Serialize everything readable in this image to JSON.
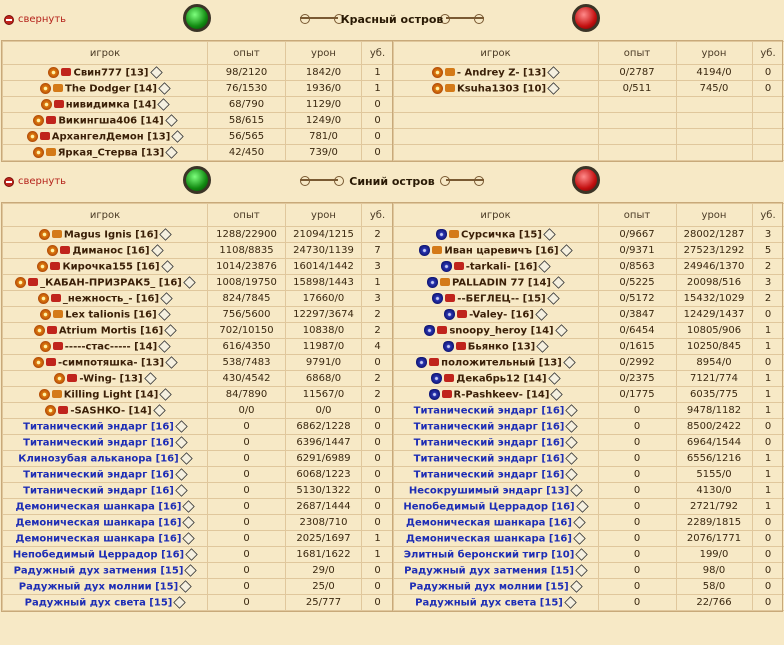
{
  "collapse_label": "свернуть",
  "headers": {
    "player": "игрок",
    "exp": "опыт",
    "dmg": "урон",
    "kills": "уб."
  },
  "sections": [
    {
      "title": "Красный остров",
      "left": [
        {
          "name": "Свин777",
          "level": "[13]",
          "exp": "98/2120",
          "dmg": "1842/0",
          "kills": "1",
          "rank": "#c0241c",
          "type": "player"
        },
        {
          "name": "The Dodger",
          "level": "[14]",
          "exp": "76/1530",
          "dmg": "1936/0",
          "kills": "1",
          "rank": "#d47a18",
          "type": "player"
        },
        {
          "name": "нивидимка",
          "level": "[14]",
          "exp": "68/790",
          "dmg": "1129/0",
          "kills": "0",
          "rank": "#c0241c",
          "type": "player"
        },
        {
          "name": "Викингша406",
          "level": "[14]",
          "exp": "58/615",
          "dmg": "1249/0",
          "kills": "0",
          "rank": "#c0241c",
          "type": "player"
        },
        {
          "name": "АрхангелДемон",
          "level": "[13]",
          "exp": "56/565",
          "dmg": "781/0",
          "kills": "0",
          "rank": "#c0241c",
          "type": "player"
        },
        {
          "name": "Яркая_Стерва",
          "level": "[13]",
          "exp": "42/450",
          "dmg": "739/0",
          "kills": "0",
          "rank": "#d47a18",
          "type": "player"
        }
      ],
      "right": [
        {
          "name": "- Andrey Z-",
          "level": "[13]",
          "exp": "0/2787",
          "dmg": "4194/0",
          "kills": "0",
          "rank": "#d47a18",
          "type": "player"
        },
        {
          "name": "Ksuha1303",
          "level": "[10]",
          "exp": "0/511",
          "dmg": "745/0",
          "kills": "0",
          "rank": "#d47a18",
          "type": "player"
        }
      ]
    },
    {
      "title": "Синий остров",
      "left": [
        {
          "name": "Magus Ignis",
          "level": "[16]",
          "exp": "1288/22900",
          "dmg": "21094/1215",
          "kills": "2",
          "rank": "#d47a18",
          "type": "player"
        },
        {
          "name": "Диманос",
          "level": "[16]",
          "exp": "1108/8835",
          "dmg": "24730/1139",
          "kills": "7",
          "rank": "#c0241c",
          "type": "player"
        },
        {
          "name": "Кирочка155",
          "level": "[16]",
          "exp": "1014/23876",
          "dmg": "16014/1442",
          "kills": "3",
          "rank": "#c0241c",
          "type": "player"
        },
        {
          "name": "_КАБАН-ПРИЗРАК5_",
          "level": "[16]",
          "exp": "1008/19750",
          "dmg": "15898/1443",
          "kills": "1",
          "rank": "#c0241c",
          "type": "player"
        },
        {
          "name": "_нежность_-",
          "level": "[16]",
          "exp": "824/7845",
          "dmg": "17660/0",
          "kills": "3",
          "rank": "#c0241c",
          "type": "player"
        },
        {
          "name": "Lex talionis",
          "level": "[16]",
          "exp": "756/5600",
          "dmg": "12297/3674",
          "kills": "2",
          "rank": "#d47a18",
          "type": "player"
        },
        {
          "name": "Atrium Mortis",
          "level": "[16]",
          "exp": "702/10150",
          "dmg": "10838/0",
          "kills": "2",
          "rank": "#c0241c",
          "type": "player"
        },
        {
          "name": "-----стас-----",
          "level": "[14]",
          "exp": "616/4350",
          "dmg": "11987/0",
          "kills": "4",
          "rank": "#c0241c",
          "type": "player"
        },
        {
          "name": "-симпотяшка-",
          "level": "[13]",
          "exp": "538/7483",
          "dmg": "9791/0",
          "kills": "0",
          "rank": "#c0241c",
          "type": "player"
        },
        {
          "name": "-Wing-",
          "level": "[13]",
          "exp": "430/4542",
          "dmg": "6868/0",
          "kills": "2",
          "rank": "#c0241c",
          "type": "player"
        },
        {
          "name": "Killing Light",
          "level": "[14]",
          "exp": "84/7890",
          "dmg": "11567/0",
          "kills": "2",
          "rank": "#d47a18",
          "type": "player"
        },
        {
          "name": "-SASHKO-",
          "level": "[14]",
          "exp": "0/0",
          "dmg": "0/0",
          "kills": "0",
          "rank": "#c0241c",
          "type": "player"
        },
        {
          "name": "Титанический эндарг",
          "level": "[16]",
          "exp": "0",
          "dmg": "6862/1228",
          "kills": "0",
          "type": "monster"
        },
        {
          "name": "Титанический эндарг",
          "level": "[16]",
          "exp": "0",
          "dmg": "6396/1447",
          "kills": "0",
          "type": "monster"
        },
        {
          "name": "Клинозубая альканора",
          "level": "[16]",
          "exp": "0",
          "dmg": "6291/6989",
          "kills": "0",
          "type": "monster"
        },
        {
          "name": "Титанический эндарг",
          "level": "[16]",
          "exp": "0",
          "dmg": "6068/1223",
          "kills": "0",
          "type": "monster"
        },
        {
          "name": "Титанический эндарг",
          "level": "[16]",
          "exp": "0",
          "dmg": "5130/1322",
          "kills": "0",
          "type": "monster"
        },
        {
          "name": "Демоническая шанкара",
          "level": "[16]",
          "exp": "0",
          "dmg": "2687/1444",
          "kills": "0",
          "type": "monster"
        },
        {
          "name": "Демоническая шанкара",
          "level": "[16]",
          "exp": "0",
          "dmg": "2308/710",
          "kills": "0",
          "type": "monster"
        },
        {
          "name": "Демоническая шанкара",
          "level": "[16]",
          "exp": "0",
          "dmg": "2025/1697",
          "kills": "1",
          "type": "monster"
        },
        {
          "name": "Непобедимый Церрадор",
          "level": "[16]",
          "exp": "0",
          "dmg": "1681/1622",
          "kills": "1",
          "type": "monster"
        },
        {
          "name": "Радужный дух затмения",
          "level": "[15]",
          "exp": "0",
          "dmg": "29/0",
          "kills": "0",
          "type": "monster"
        },
        {
          "name": "Радужный дух молнии",
          "level": "[15]",
          "exp": "0",
          "dmg": "25/0",
          "kills": "0",
          "type": "monster"
        },
        {
          "name": "Радужный дух света",
          "level": "[15]",
          "exp": "0",
          "dmg": "25/777",
          "kills": "0",
          "type": "monster"
        }
      ],
      "right": [
        {
          "name": "Сурсичка",
          "level": "[15]",
          "exp": "0/9667",
          "dmg": "28002/1287",
          "kills": "3",
          "rank": "#d47a18",
          "type": "enemy"
        },
        {
          "name": "Иван царевичъ",
          "level": "[16]",
          "exp": "0/9371",
          "dmg": "27523/1292",
          "kills": "5",
          "rank": "#d47a18",
          "type": "enemy"
        },
        {
          "name": "-tarkali-",
          "level": "[16]",
          "exp": "0/8563",
          "dmg": "24946/1370",
          "kills": "2",
          "rank": "#c0241c",
          "type": "enemy"
        },
        {
          "name": "PALLADIN 77",
          "level": "[14]",
          "exp": "0/5225",
          "dmg": "20098/516",
          "kills": "3",
          "rank": "#d47a18",
          "type": "enemy"
        },
        {
          "name": "--БЕГЛЕЦ--",
          "level": "[15]",
          "exp": "0/5172",
          "dmg": "15432/1029",
          "kills": "2",
          "rank": "#c0241c",
          "type": "enemy"
        },
        {
          "name": "-Valey-",
          "level": "[16]",
          "exp": "0/3847",
          "dmg": "12429/1437",
          "kills": "0",
          "rank": "#c0241c",
          "type": "enemy"
        },
        {
          "name": "snoopy_heroy",
          "level": "[14]",
          "exp": "0/6454",
          "dmg": "10805/906",
          "kills": "1",
          "rank": "#c0241c",
          "type": "enemy"
        },
        {
          "name": "Бьянко",
          "level": "[13]",
          "exp": "0/1615",
          "dmg": "10250/845",
          "kills": "1",
          "rank": "#c0241c",
          "type": "enemy"
        },
        {
          "name": "положительный",
          "level": "[13]",
          "exp": "0/2992",
          "dmg": "8954/0",
          "kills": "0",
          "rank": "#c0241c",
          "type": "enemy"
        },
        {
          "name": "Декабрь12",
          "level": "[14]",
          "exp": "0/2375",
          "dmg": "7121/774",
          "kills": "1",
          "rank": "#c0241c",
          "type": "enemy"
        },
        {
          "name": "R-Pashkeev-",
          "level": "[14]",
          "exp": "0/1775",
          "dmg": "6035/775",
          "kills": "1",
          "rank": "#c0241c",
          "type": "enemy"
        },
        {
          "name": "Титанический эндарг",
          "level": "[16]",
          "exp": "0",
          "dmg": "9478/1182",
          "kills": "1",
          "type": "monster"
        },
        {
          "name": "Титанический эндарг",
          "level": "[16]",
          "exp": "0",
          "dmg": "8500/2422",
          "kills": "0",
          "type": "monster"
        },
        {
          "name": "Титанический эндарг",
          "level": "[16]",
          "exp": "0",
          "dmg": "6964/1544",
          "kills": "0",
          "type": "monster"
        },
        {
          "name": "Титанический эндарг",
          "level": "[16]",
          "exp": "0",
          "dmg": "6556/1216",
          "kills": "1",
          "type": "monster"
        },
        {
          "name": "Титанический эндарг",
          "level": "[16]",
          "exp": "0",
          "dmg": "5155/0",
          "kills": "1",
          "type": "monster"
        },
        {
          "name": "Несокрушимый эндарг",
          "level": "[13]",
          "exp": "0",
          "dmg": "4130/0",
          "kills": "1",
          "type": "monster"
        },
        {
          "name": "Непобедимый Церрадор",
          "level": "[16]",
          "exp": "0",
          "dmg": "2721/792",
          "kills": "1",
          "type": "monster"
        },
        {
          "name": "Демоническая шанкара",
          "level": "[16]",
          "exp": "0",
          "dmg": "2289/1815",
          "kills": "0",
          "type": "monster"
        },
        {
          "name": "Демоническая шанкара",
          "level": "[16]",
          "exp": "0",
          "dmg": "2076/1771",
          "kills": "0",
          "type": "monster"
        },
        {
          "name": "Элитный беронский тигр",
          "level": "[10]",
          "exp": "0",
          "dmg": "199/0",
          "kills": "0",
          "type": "monster"
        },
        {
          "name": "Радужный дух затмения",
          "level": "[15]",
          "exp": "0",
          "dmg": "98/0",
          "kills": "0",
          "type": "monster"
        },
        {
          "name": "Радужный дух молнии",
          "level": "[15]",
          "exp": "0",
          "dmg": "58/0",
          "kills": "0",
          "type": "monster"
        },
        {
          "name": "Радужный дух света",
          "level": "[15]",
          "exp": "0",
          "dmg": "22/766",
          "kills": "0",
          "type": "monster"
        }
      ]
    }
  ]
}
